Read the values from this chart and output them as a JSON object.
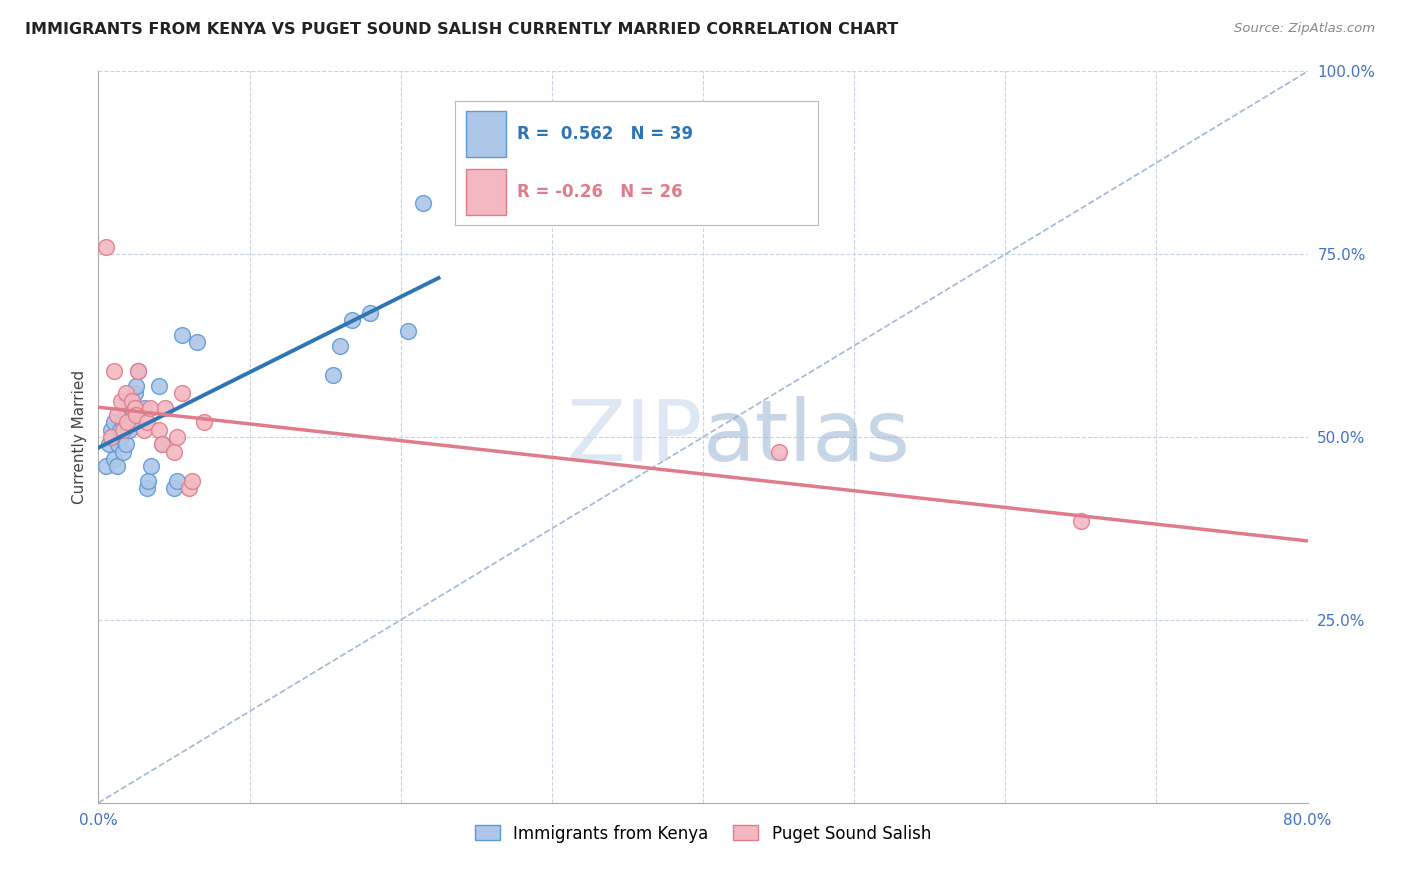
{
  "title": "IMMIGRANTS FROM KENYA VS PUGET SOUND SALISH CURRENTLY MARRIED CORRELATION CHART",
  "source": "Source: ZipAtlas.com",
  "ylabel": "Currently Married",
  "xlim": [
    0.0,
    0.8
  ],
  "ylim": [
    0.0,
    1.0
  ],
  "yticks_right": [
    0.0,
    0.25,
    0.5,
    0.75,
    1.0
  ],
  "yticklabels_right": [
    "",
    "25.0%",
    "50.0%",
    "75.0%",
    "100.0%"
  ],
  "r_blue": 0.562,
  "n_blue": 39,
  "r_pink": -0.26,
  "n_pink": 26,
  "color_blue_fill": "#aec6e8",
  "color_blue_edge": "#5b9bd5",
  "color_blue_line": "#2e75b6",
  "color_blue_text": "#2e75b6",
  "color_pink_fill": "#f4b8c1",
  "color_pink_edge": "#e07b8a",
  "color_pink_line": "#e07b8a",
  "color_pink_text": "#e07b8a",
  "color_diagonal": "#a0b8d8",
  "color_grid": "#c8d4e4",
  "legend_label_blue": "Immigrants from Kenya",
  "legend_label_pink": "Puget Sound Salish",
  "blue_x": [
    0.005,
    0.007,
    0.008,
    0.009,
    0.01,
    0.01,
    0.012,
    0.013,
    0.014,
    0.015,
    0.016,
    0.016,
    0.017,
    0.018,
    0.018,
    0.019,
    0.02,
    0.02,
    0.022,
    0.023,
    0.024,
    0.025,
    0.026,
    0.03,
    0.032,
    0.033,
    0.035,
    0.04,
    0.042,
    0.05,
    0.052,
    0.055,
    0.065,
    0.155,
    0.16,
    0.168,
    0.18,
    0.205,
    0.215
  ],
  "blue_y": [
    0.46,
    0.49,
    0.51,
    0.5,
    0.47,
    0.52,
    0.46,
    0.49,
    0.51,
    0.5,
    0.48,
    0.52,
    0.51,
    0.49,
    0.53,
    0.55,
    0.52,
    0.51,
    0.54,
    0.52,
    0.56,
    0.57,
    0.59,
    0.54,
    0.43,
    0.44,
    0.46,
    0.57,
    0.49,
    0.43,
    0.44,
    0.64,
    0.63,
    0.585,
    0.625,
    0.66,
    0.67,
    0.645,
    0.82
  ],
  "pink_x": [
    0.005,
    0.008,
    0.01,
    0.012,
    0.015,
    0.016,
    0.018,
    0.019,
    0.022,
    0.024,
    0.025,
    0.026,
    0.03,
    0.032,
    0.034,
    0.04,
    0.042,
    0.044,
    0.05,
    0.052,
    0.055,
    0.06,
    0.062,
    0.07,
    0.45,
    0.65
  ],
  "pink_y": [
    0.76,
    0.5,
    0.59,
    0.53,
    0.55,
    0.51,
    0.56,
    0.52,
    0.55,
    0.54,
    0.53,
    0.59,
    0.51,
    0.52,
    0.54,
    0.51,
    0.49,
    0.54,
    0.48,
    0.5,
    0.56,
    0.43,
    0.44,
    0.52,
    0.48,
    0.385
  ]
}
